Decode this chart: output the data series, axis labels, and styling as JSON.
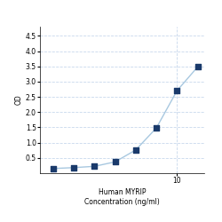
{
  "x_values": [
    0.156,
    0.313,
    0.625,
    1.25,
    2.5,
    5,
    10,
    20
  ],
  "y_values": [
    0.152,
    0.182,
    0.224,
    0.37,
    0.76,
    1.48,
    2.7,
    3.48
  ],
  "xlabel_line1": "Human MYRIP",
  "xlabel_line2": "Concentration (ng/ml)",
  "ylabel": "OD",
  "xlim": [
    0.1,
    25
  ],
  "ylim": [
    0,
    4.8
  ],
  "yticks": [
    0.5,
    1.0,
    1.5,
    2.0,
    2.5,
    3.0,
    3.5,
    4.0,
    4.5
  ],
  "xticks": [
    10
  ],
  "xticklabels": [
    "10"
  ],
  "line_color": "#a8c8e0",
  "marker_color": "#1a3a6b",
  "marker_size": 4,
  "grid_color": "#c8d8ec",
  "background_color": "#ffffff",
  "axis_fontsize": 5.5,
  "tick_fontsize": 5.5
}
